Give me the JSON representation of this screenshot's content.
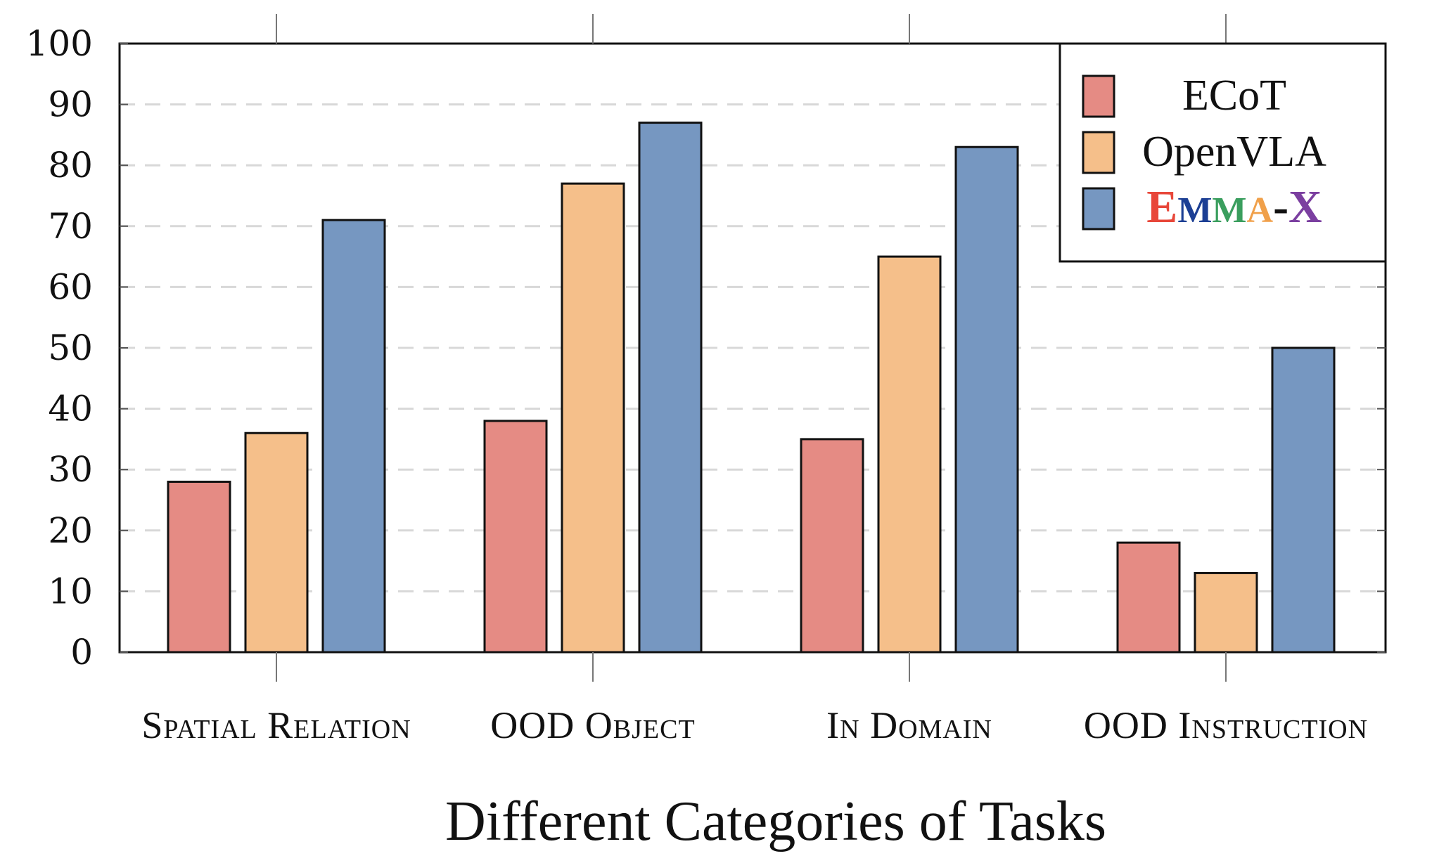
{
  "chart_data": {
    "type": "bar",
    "categories": [
      "Spatial Relation",
      "OOD Object",
      "In Domain",
      "OOD Instruction"
    ],
    "series": [
      {
        "name": "ECoT",
        "values": [
          28,
          38,
          35,
          18
        ],
        "color": "#e58b84"
      },
      {
        "name": "OpenVLA",
        "values": [
          36,
          77,
          65,
          13
        ],
        "color": "#f5bf8a"
      },
      {
        "name": "EMMA-X",
        "values": [
          71,
          87,
          83,
          50
        ],
        "color": "#7697c1"
      }
    ],
    "title": "",
    "xlabel": "Different Categories of Tasks",
    "ylabel": "",
    "ylim": [
      0,
      100
    ],
    "yticks": [
      0,
      10,
      20,
      30,
      40,
      50,
      60,
      70,
      80,
      90,
      100
    ],
    "grid": "horizontal dashed",
    "legend_position": "top-right",
    "emma_letter_colors": [
      "#e8473a",
      "#1c3f94",
      "#3a9e5e",
      "#f0a04a",
      "#111111",
      "#7b3fa0"
    ]
  }
}
